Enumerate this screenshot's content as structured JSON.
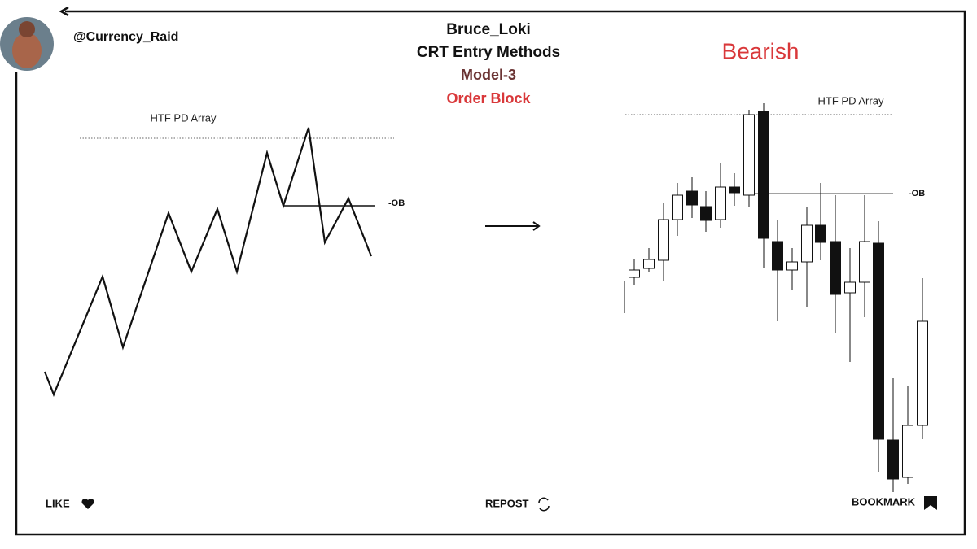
{
  "header": {
    "handle": "@Currency_Raid",
    "title": "Bruce_Loki",
    "subtitle": "CRT Entry Methods",
    "model": "Model-3",
    "topic": "Order Block"
  },
  "left_diagram": {
    "level_label": "HTF PD Array",
    "ob_label": "-OB"
  },
  "right_diagram": {
    "heading": "Bearish",
    "level_label": "HTF PD Array",
    "ob_label": "-OB"
  },
  "footer": {
    "like": "LIKE",
    "repost": "REPOST",
    "bookmark": "BOOKMARK"
  }
}
